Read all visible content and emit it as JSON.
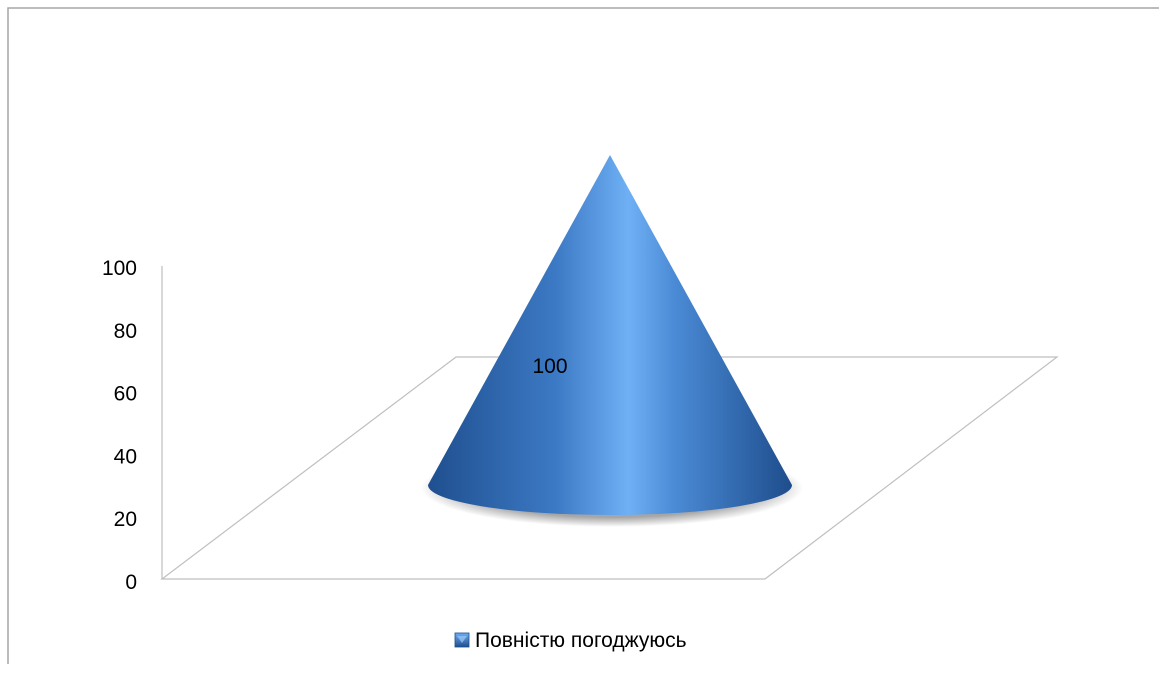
{
  "chart_data": {
    "type": "bar",
    "subtype": "3d-cone",
    "categories": [
      ""
    ],
    "series": [
      {
        "name": "Повністю погоджуюсь",
        "values": [
          100
        ],
        "color": "#3E7CC8"
      }
    ],
    "data_labels": [
      "100"
    ],
    "ylim": [
      0,
      100
    ],
    "yticks": [
      "0",
      "20",
      "40",
      "60",
      "80",
      "100"
    ],
    "legend_position": "bottom",
    "grid": false,
    "title": "",
    "xlabel": "",
    "ylabel": ""
  }
}
